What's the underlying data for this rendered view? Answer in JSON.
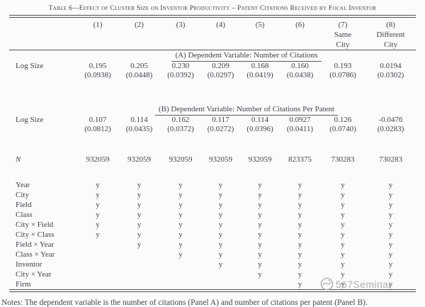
{
  "table": {
    "title": "Table 6—Effect of Cluster Size on Inventor Productivity – Patent Citations Received by Focal Inventor",
    "column_headers": [
      "(1)",
      "(2)",
      "(3)",
      "(4)",
      "(5)",
      "(6)",
      "(7)",
      "(8)"
    ],
    "column_subheaders": [
      {
        "col": 7,
        "lines": [
          "Same",
          "City"
        ]
      },
      {
        "col": 8,
        "lines": [
          "Different",
          "City"
        ]
      }
    ],
    "panel_a": {
      "header": "(A) Dependent Variable: Number of Citations",
      "rows": [
        {
          "label": "Log Size",
          "values": [
            "0.195",
            "0.205",
            "0.230",
            "0.209",
            "0.168",
            "0.160",
            "0.193",
            "0.0194"
          ]
        },
        {
          "label": "",
          "values": [
            "(0.0938)",
            "(0.0448)",
            "(0.0392)",
            "(0.0297)",
            "(0.0419)",
            "(0.0438)",
            "(0.0786)",
            "(0.0302)"
          ]
        }
      ]
    },
    "panel_b": {
      "header": "(B) Dependent Variable: Number of Citations Per Patent",
      "rows": [
        {
          "label": "Log Size",
          "values": [
            "0.107",
            "0.114",
            "0.162",
            "0.117",
            "0.114",
            "0.0927",
            "0.126",
            "-0.0476"
          ]
        },
        {
          "label": "",
          "values": [
            "(0.0812)",
            "(0.0435)",
            "(0.0372)",
            "(0.0272)",
            "(0.0396)",
            "(0.0411)",
            "(0.0740)",
            "(0.0283)"
          ]
        }
      ]
    },
    "n_row": {
      "label": "N",
      "values": [
        "932059",
        "932059",
        "932059",
        "932059",
        "932059",
        "823375",
        "730283",
        "730283"
      ]
    },
    "fixed_effects_rows": [
      {
        "label": "Year",
        "values": [
          "y",
          "y",
          "y",
          "y",
          "y",
          "y",
          "y",
          "y"
        ]
      },
      {
        "label": "City",
        "values": [
          "y",
          "y",
          "y",
          "y",
          "y",
          "y",
          "y",
          "y"
        ]
      },
      {
        "label": "Field",
        "values": [
          "y",
          "y",
          "y",
          "y",
          "y",
          "y",
          "y",
          "y"
        ]
      },
      {
        "label": "Class",
        "values": [
          "y",
          "y",
          "y",
          "y",
          "y",
          "y",
          "y",
          "y"
        ]
      },
      {
        "label": "City × Field",
        "values": [
          "y",
          "y",
          "y",
          "y",
          "y",
          "y",
          "y",
          "y"
        ]
      },
      {
        "label": "City × Class",
        "values": [
          "y",
          "y",
          "y",
          "y",
          "y",
          "y",
          "y",
          "y"
        ]
      },
      {
        "label": "Field × Year",
        "values": [
          "",
          "y",
          "y",
          "y",
          "y",
          "y",
          "y",
          "y"
        ]
      },
      {
        "label": "Class × Year",
        "values": [
          "",
          "",
          "y",
          "y",
          "y",
          "y",
          "y",
          "y"
        ]
      },
      {
        "label": "Inventor",
        "values": [
          "",
          "",
          "",
          "y",
          "y",
          "y",
          "y",
          "y"
        ]
      },
      {
        "label": "City × Year",
        "values": [
          "",
          "",
          "",
          "",
          "y",
          "y",
          "y",
          "y"
        ]
      },
      {
        "label": "Firm",
        "values": [
          "",
          "",
          "",
          "",
          "",
          "y",
          "y",
          "y"
        ]
      }
    ],
    "notes_clipped": "Notes: The dependent variable is the number of citations (Panel A) and number of citations per patent (Panel B)."
  },
  "watermark": {
    "text": "567Seminar",
    "color": "#a2a2a6"
  }
}
